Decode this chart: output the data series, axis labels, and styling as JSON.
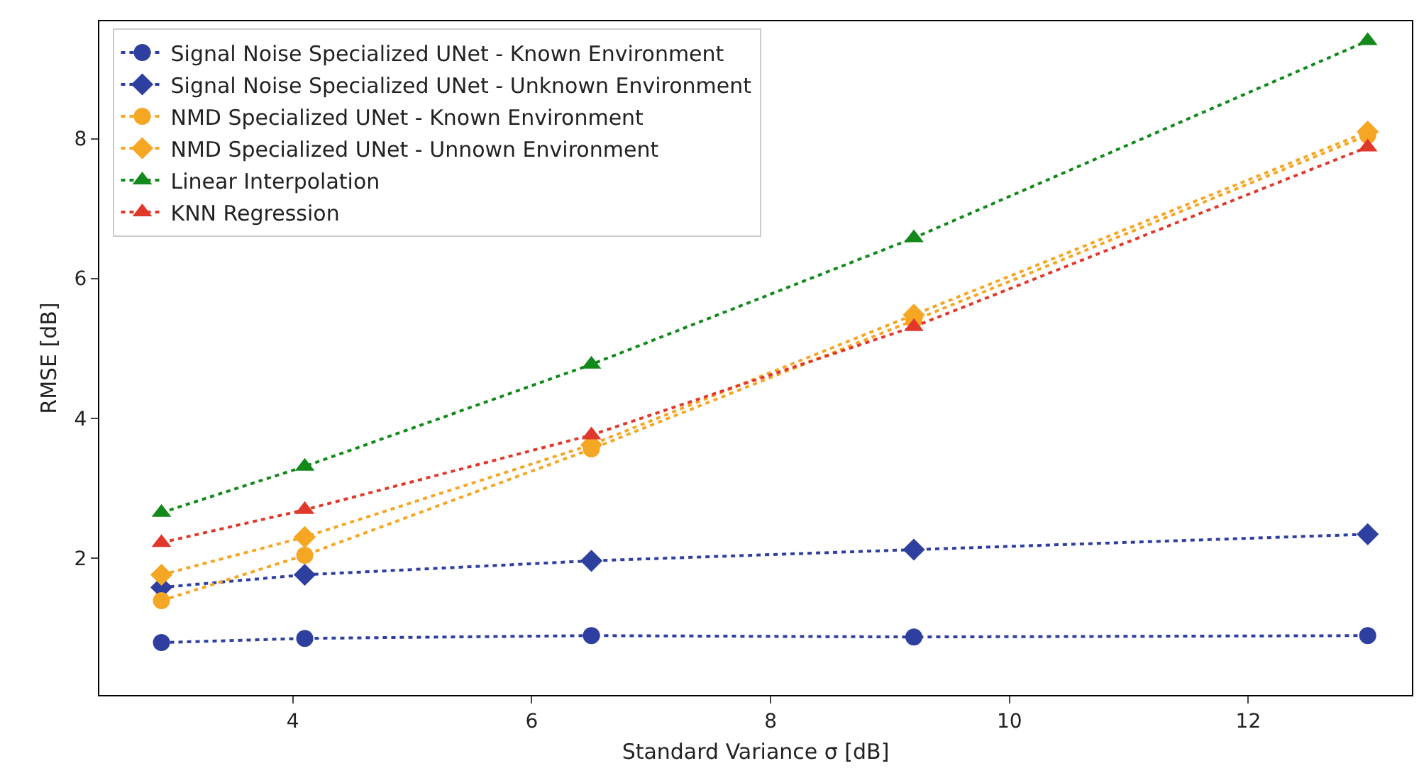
{
  "chart_data": {
    "type": "line",
    "xlabel": "Standard Variance σ [dB]",
    "ylabel": "RMSE [dB]",
    "x": [
      2.9,
      4.1,
      6.5,
      9.2,
      13.0
    ],
    "series": [
      {
        "name": "Signal Noise Specialized UNet - Known Environment",
        "color": "#2f3f9f",
        "marker": "circle",
        "values": [
          0.79,
          0.85,
          0.89,
          0.87,
          0.89
        ]
      },
      {
        "name": "Signal Noise Specialized UNet - Unknown Environment",
        "color": "#2f3f9f",
        "marker": "diamond",
        "values": [
          1.58,
          1.76,
          1.96,
          2.12,
          2.34
        ]
      },
      {
        "name": "NMD Specialized UNet - Known Environment",
        "color": "#f5a623",
        "marker": "circle",
        "values": [
          1.39,
          2.04,
          3.56,
          5.4,
          8.05
        ]
      },
      {
        "name": "NMD Specialized UNet - Unnown Environment",
        "color": "#f5a623",
        "marker": "diamond",
        "values": [
          1.76,
          2.3,
          3.62,
          5.48,
          8.1
        ]
      },
      {
        "name": "Linear Interpolation",
        "color": "#13881b",
        "marker": "triangle",
        "values": [
          2.65,
          3.31,
          4.77,
          6.58,
          9.4
        ]
      },
      {
        "name": "KNN Regression",
        "color": "#e0392b",
        "marker": "triangle",
        "values": [
          2.22,
          2.69,
          3.76,
          5.31,
          7.88
        ]
      }
    ],
    "line_style": "dotted",
    "xlim": [
      2.38,
      13.37
    ],
    "ylim": [
      0.04,
      9.68
    ],
    "xticks": [
      4,
      6,
      8,
      10,
      12
    ],
    "yticks": [
      2,
      4,
      6,
      8
    ],
    "grid": false,
    "legend": "top left"
  }
}
